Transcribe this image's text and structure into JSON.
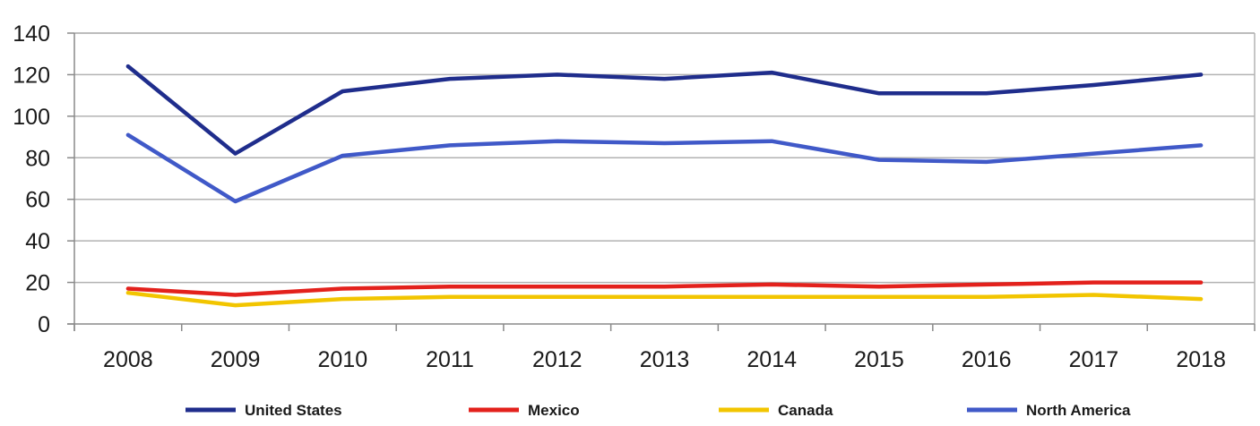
{
  "chart_data": {
    "type": "line",
    "title": "",
    "xlabel": "",
    "ylabel": "",
    "categories": [
      "2008",
      "2009",
      "2010",
      "2011",
      "2012",
      "2013",
      "2014",
      "2015",
      "2016",
      "2017",
      "2018"
    ],
    "ylim": [
      0,
      140
    ],
    "yticks": [
      "0",
      "20",
      "40",
      "60",
      "80",
      "100",
      "120",
      "140"
    ],
    "grid": "horizontal",
    "legend_position": "bottom",
    "series": [
      {
        "name": "United States",
        "color": "#1f2d8c",
        "values": [
          124,
          82,
          112,
          118,
          120,
          118,
          121,
          111,
          111,
          115,
          120
        ]
      },
      {
        "name": "Mexico",
        "color": "#e3211c",
        "values": [
          17,
          14,
          17,
          18,
          18,
          18,
          19,
          18,
          19,
          20,
          20
        ]
      },
      {
        "name": "Canada",
        "color": "#f2c500",
        "values": [
          15,
          9,
          12,
          13,
          13,
          13,
          13,
          13,
          13,
          14,
          12
        ]
      },
      {
        "name": "North America",
        "color": "#4059c8",
        "values": [
          91,
          59,
          81,
          86,
          88,
          87,
          88,
          79,
          78,
          82,
          86
        ]
      }
    ]
  }
}
